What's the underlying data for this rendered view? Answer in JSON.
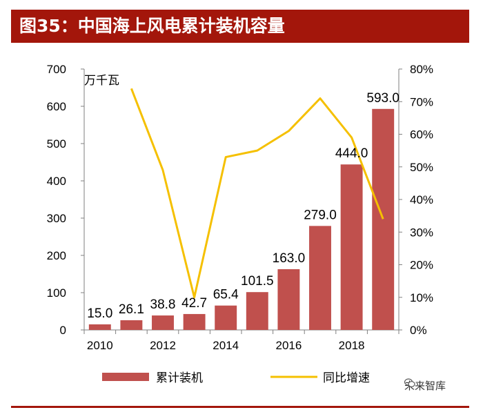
{
  "title": "图35：中国海上风电累计装机容量",
  "watermark": "未来智库",
  "colors": {
    "title_bg": "#a3160b",
    "bar": "#c0504d",
    "line": "#f5c000",
    "axis": "#7f7f7f"
  },
  "chart_data": {
    "type": "bar",
    "title": "",
    "unit_label": "万千瓦",
    "categories": [
      "2010",
      "2011",
      "2012",
      "2013",
      "2014",
      "2015",
      "2016",
      "2017",
      "2018",
      "2019"
    ],
    "x_tick_labels": [
      "2010",
      "",
      "2012",
      "",
      "2014",
      "",
      "2016",
      "",
      "2018",
      ""
    ],
    "series": [
      {
        "name": "累计装机",
        "type": "bar",
        "axis": "left",
        "values": [
          15.0,
          26.1,
          38.8,
          42.7,
          65.4,
          101.5,
          163.0,
          279.0,
          444.0,
          593.0
        ],
        "labels": [
          "15.0",
          "26.1",
          "38.8",
          "42.7",
          "65.4",
          "101.5",
          "163.0",
          "279.0",
          "444.0",
          "593.0"
        ]
      },
      {
        "name": "同比增速",
        "type": "line",
        "axis": "right",
        "values": [
          null,
          0.74,
          0.49,
          0.1,
          0.53,
          0.55,
          0.61,
          0.71,
          0.59,
          0.34
        ]
      }
    ],
    "ylim_left": [
      0,
      700
    ],
    "yticks_left": [
      "0",
      "100",
      "200",
      "300",
      "400",
      "500",
      "600",
      "700"
    ],
    "ylim_right": [
      0,
      0.8
    ],
    "yticks_right": [
      "0%",
      "10%",
      "20%",
      "30%",
      "40%",
      "50%",
      "60%",
      "70%",
      "80%"
    ],
    "grid": false,
    "legend_position": "bottom"
  }
}
